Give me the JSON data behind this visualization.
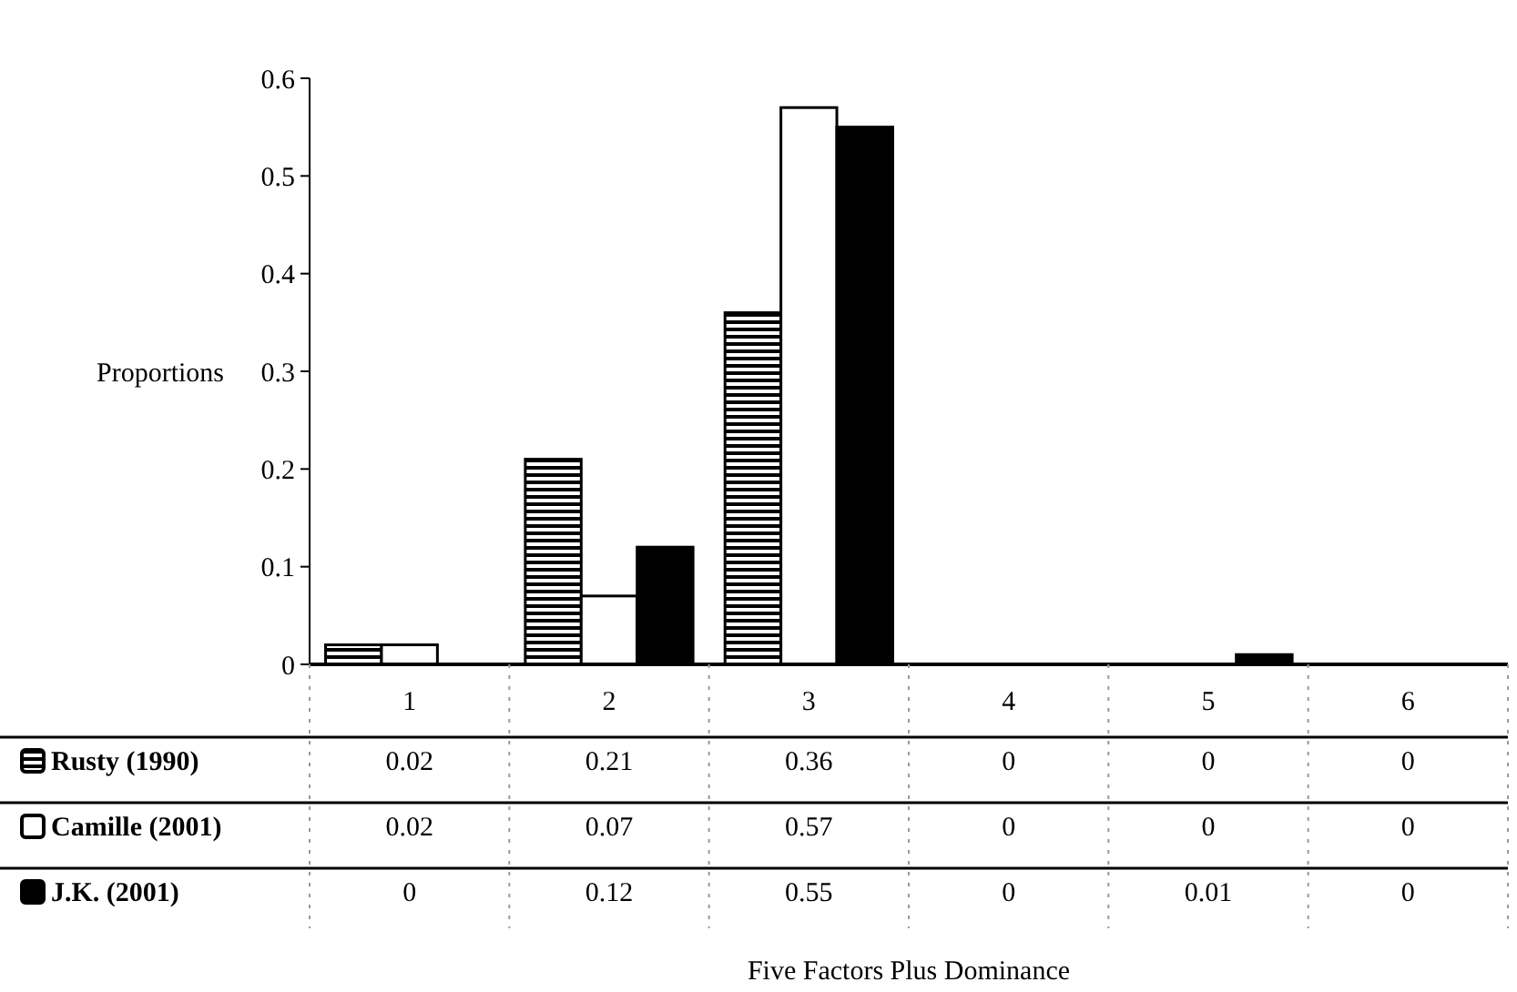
{
  "chart_data": {
    "type": "bar",
    "annotations": [
      "Five Factors Plus Dominance"
    ],
    "ylabel": "Proportions",
    "categories": [
      "1",
      "2",
      "3",
      "4",
      "5",
      "6"
    ],
    "series": [
      {
        "name": "Rusty (1990)",
        "color": "#000000",
        "values": [
          0.02,
          0.21,
          0.36,
          0,
          0,
          0
        ]
      },
      {
        "name": "Camille (2001)",
        "color": "#ffffff",
        "values": [
          0.02,
          0.07,
          0.57,
          0,
          0,
          0
        ]
      },
      {
        "name": "J.K. (2001)",
        "color": "#000000",
        "values": [
          0,
          0.12,
          0.55,
          0,
          0.01,
          0
        ]
      }
    ],
    "ylim": [
      0,
      0.6
    ],
    "yticks": [
      0,
      0.1,
      0.2,
      0.3,
      0.4,
      0.5,
      0.6
    ],
    "data_labels": true,
    "legend": "bottom",
    "grid": false
  }
}
